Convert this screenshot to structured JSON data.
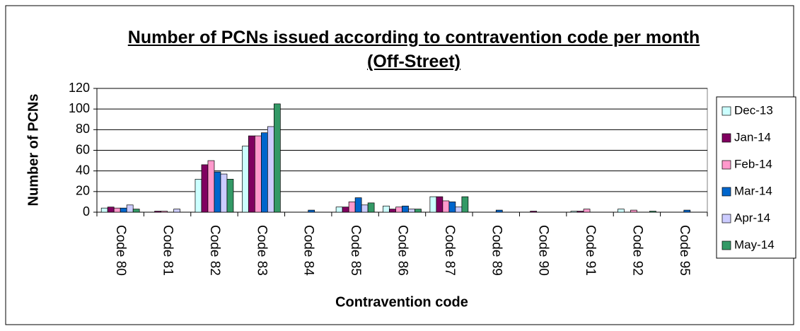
{
  "chart_data": {
    "type": "bar",
    "title": "Number of PCNs issued according to contravention code per month (Off-Street)",
    "x_label": "Contravention code",
    "y_label": "Number of PCNs",
    "categories": [
      "Code 80",
      "Code 81",
      "Code 82",
      "Code 83",
      "Code 84",
      "Code 85",
      "Code 86",
      "Code 87",
      "Code 89",
      "Code 90",
      "Code 91",
      "Code 92",
      "Code 95"
    ],
    "series": [
      {
        "name": "Dec-13",
        "color": "#ccffff",
        "values": [
          4,
          0,
          32,
          64,
          0,
          5,
          6,
          15,
          0,
          0,
          1,
          3,
          0
        ]
      },
      {
        "name": "Jan-14",
        "color": "#800060",
        "values": [
          5,
          1,
          46,
          74,
          0,
          5,
          3,
          15,
          0,
          1,
          1,
          0,
          0
        ]
      },
      {
        "name": "Feb-14",
        "color": "#ff99cc",
        "values": [
          4,
          1,
          50,
          74,
          0,
          10,
          5,
          11,
          0,
          0,
          3,
          2,
          0
        ]
      },
      {
        "name": "Mar-14",
        "color": "#0066cc",
        "values": [
          4,
          0,
          39,
          77,
          2,
          14,
          6,
          10,
          2,
          0,
          0,
          0,
          2
        ]
      },
      {
        "name": "Apr-14",
        "color": "#ccccff",
        "values": [
          7,
          3,
          37,
          83,
          0,
          7,
          3,
          5,
          0,
          0,
          0,
          0,
          0
        ]
      },
      {
        "name": "May-14",
        "color": "#339966",
        "values": [
          3,
          0,
          32,
          105,
          0,
          9,
          3,
          15,
          0,
          0,
          0,
          1,
          0
        ]
      }
    ],
    "ylim": [
      0,
      120
    ],
    "yticks": [
      0,
      20,
      40,
      60,
      80,
      100,
      120
    ],
    "grid": true,
    "legend": "right"
  }
}
